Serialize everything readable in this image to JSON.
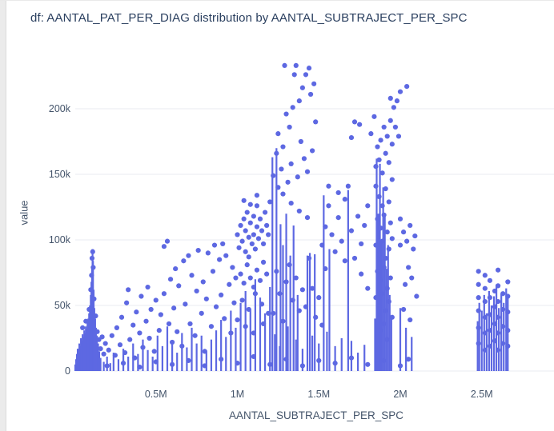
{
  "colors": {
    "marker": "#5D68E2",
    "grid": "#E9EBF1",
    "title_text": "#2A3F5F",
    "tick_text": "#44546A",
    "gutter": "#EBEBEB"
  },
  "chart_data": {
    "type": "scatter",
    "title": "df: AANTAL_PAT_PER_DIAG distribution by AANTAL_SUBTRAJECT_PER_SPC",
    "xlabel": "AANTAL_SUBTRAJECT_PER_SPC",
    "ylabel": "value",
    "x_units": "millions",
    "y_units": "thousands",
    "xlim_m": [
      0,
      2.96
    ],
    "ylim_k": [
      0,
      241
    ],
    "grid": true,
    "legend_position": "none",
    "x_ticks": [
      {
        "value_m": 0.5,
        "label": "0.5M"
      },
      {
        "value_m": 1.0,
        "label": "1M"
      },
      {
        "value_m": 1.5,
        "label": "1.5M"
      },
      {
        "value_m": 2.0,
        "label": "2M"
      },
      {
        "value_m": 2.5,
        "label": "2.5M"
      }
    ],
    "y_ticks": [
      {
        "value_k": 0,
        "label": "0"
      },
      {
        "value_k": 50,
        "label": "50k"
      },
      {
        "value_k": 100,
        "label": "100k"
      },
      {
        "value_k": 150,
        "label": "150k"
      },
      {
        "value_k": 200,
        "label": "200k"
      }
    ],
    "segments_xm_yk": [
      [
        0.005,
        5
      ],
      [
        0.01,
        9
      ],
      [
        0.015,
        13
      ],
      [
        0.02,
        17
      ],
      [
        0.025,
        15
      ],
      [
        0.03,
        21
      ],
      [
        0.035,
        19
      ],
      [
        0.04,
        25
      ],
      [
        0.045,
        23
      ],
      [
        0.05,
        28
      ],
      [
        0.055,
        26
      ],
      [
        0.06,
        31
      ],
      [
        0.065,
        29
      ],
      [
        0.07,
        34
      ],
      [
        0.075,
        32
      ],
      [
        0.08,
        37
      ],
      [
        0.085,
        40
      ],
      [
        0.09,
        44
      ],
      [
        0.095,
        50
      ],
      [
        0.1,
        58
      ],
      [
        0.104,
        68
      ],
      [
        0.108,
        80
      ],
      [
        0.111,
        93
      ],
      [
        0.114,
        84
      ],
      [
        0.118,
        62
      ],
      [
        0.122,
        48
      ],
      [
        0.127,
        40
      ],
      [
        0.132,
        33
      ],
      [
        0.138,
        27
      ],
      [
        0.145,
        21
      ],
      [
        0.152,
        15
      ],
      [
        0.16,
        10
      ],
      [
        0.18,
        7
      ],
      [
        0.2,
        11
      ],
      [
        0.22,
        6
      ],
      [
        0.24,
        14
      ],
      [
        0.27,
        9
      ],
      [
        0.3,
        17
      ],
      [
        0.33,
        11
      ],
      [
        0.36,
        21
      ],
      [
        0.39,
        13
      ],
      [
        0.42,
        24
      ],
      [
        0.45,
        16
      ],
      [
        0.48,
        11
      ],
      [
        0.51,
        27
      ],
      [
        0.54,
        19
      ],
      [
        0.57,
        34
      ],
      [
        0.6,
        23
      ],
      [
        0.63,
        14
      ],
      [
        0.66,
        29
      ],
      [
        0.69,
        18
      ],
      [
        0.72,
        33
      ],
      [
        0.75,
        21
      ],
      [
        0.78,
        27
      ],
      [
        0.81,
        15
      ],
      [
        0.84,
        24
      ],
      [
        0.87,
        31
      ],
      [
        0.9,
        39
      ],
      [
        0.93,
        26
      ],
      [
        0.96,
        46
      ],
      [
        0.99,
        33
      ],
      [
        1.02,
        52
      ],
      [
        1.05,
        61
      ],
      [
        1.08,
        47
      ],
      [
        1.11,
        70
      ],
      [
        1.14,
        56
      ],
      [
        1.17,
        44
      ],
      [
        1.2,
        64
      ],
      [
        1.215,
        163
      ],
      [
        1.24,
        170
      ],
      [
        1.265,
        112
      ],
      [
        1.28,
        96
      ],
      [
        1.3,
        120
      ],
      [
        1.325,
        88
      ],
      [
        1.345,
        111
      ],
      [
        1.37,
        58
      ],
      [
        1.43,
        88
      ],
      [
        1.445,
        90
      ],
      [
        1.475,
        89
      ],
      [
        1.53,
        134
      ],
      [
        1.565,
        93
      ],
      [
        1.68,
        138
      ],
      [
        1.23,
        28
      ],
      [
        1.26,
        19
      ],
      [
        1.31,
        34
      ],
      [
        1.36,
        24
      ],
      [
        1.4,
        17
      ],
      [
        1.46,
        27
      ],
      [
        1.5,
        21
      ],
      [
        1.55,
        30
      ],
      [
        1.6,
        19
      ],
      [
        1.64,
        25
      ],
      [
        1.7,
        23
      ],
      [
        1.74,
        14
      ],
      [
        1.78,
        20
      ],
      [
        1.845,
        40
      ],
      [
        1.855,
        162
      ],
      [
        1.865,
        120
      ],
      [
        1.875,
        158
      ],
      [
        1.885,
        98
      ],
      [
        1.895,
        140
      ],
      [
        1.905,
        118
      ],
      [
        1.915,
        78
      ],
      [
        1.925,
        96
      ],
      [
        1.935,
        58
      ],
      [
        1.945,
        42
      ],
      [
        2.0,
        48
      ],
      [
        2.035,
        33
      ],
      [
        2.07,
        26
      ],
      [
        2.475,
        38
      ],
      [
        2.485,
        52
      ],
      [
        2.5,
        46
      ],
      [
        2.515,
        58
      ],
      [
        2.53,
        44
      ],
      [
        2.545,
        61
      ],
      [
        2.56,
        50
      ],
      [
        2.575,
        57
      ],
      [
        2.59,
        66
      ],
      [
        2.605,
        48
      ],
      [
        2.62,
        59
      ],
      [
        2.635,
        52
      ],
      [
        2.65,
        63
      ],
      [
        2.66,
        57
      ]
    ],
    "points_xm_yk": [
      [
        0.05,
        33
      ],
      [
        0.07,
        38
      ],
      [
        0.09,
        47
      ],
      [
        0.1,
        62
      ],
      [
        0.105,
        73
      ],
      [
        0.108,
        86
      ],
      [
        0.112,
        91
      ],
      [
        0.115,
        79
      ],
      [
        0.12,
        55
      ],
      [
        0.13,
        42
      ],
      [
        0.14,
        30
      ],
      [
        0.15,
        24
      ],
      [
        0.16,
        17
      ],
      [
        0.17,
        26
      ],
      [
        0.18,
        13
      ],
      [
        0.19,
        21
      ],
      [
        0.21,
        16
      ],
      [
        0.23,
        27
      ],
      [
        0.25,
        12
      ],
      [
        0.26,
        33
      ],
      [
        0.28,
        20
      ],
      [
        0.29,
        41
      ],
      [
        0.31,
        14
      ],
      [
        0.32,
        52
      ],
      [
        0.33,
        62
      ],
      [
        0.34,
        24
      ],
      [
        0.36,
        35
      ],
      [
        0.37,
        10
      ],
      [
        0.38,
        45
      ],
      [
        0.4,
        29
      ],
      [
        0.41,
        57
      ],
      [
        0.42,
        18
      ],
      [
        0.44,
        38
      ],
      [
        0.45,
        64
      ],
      [
        0.46,
        25
      ],
      [
        0.47,
        47
      ],
      [
        0.49,
        15
      ],
      [
        0.5,
        54
      ],
      [
        0.52,
        31
      ],
      [
        0.53,
        43
      ],
      [
        0.55,
        95
      ],
      [
        0.55,
        59
      ],
      [
        0.57,
        99
      ],
      [
        0.58,
        36
      ],
      [
        0.59,
        70
      ],
      [
        0.6,
        22
      ],
      [
        0.61,
        48
      ],
      [
        0.62,
        78
      ],
      [
        0.63,
        30
      ],
      [
        0.64,
        65
      ],
      [
        0.66,
        19
      ],
      [
        0.67,
        84
      ],
      [
        0.68,
        51
      ],
      [
        0.7,
        88
      ],
      [
        0.71,
        36
      ],
      [
        0.72,
        73
      ],
      [
        0.74,
        27
      ],
      [
        0.75,
        61
      ],
      [
        0.76,
        92
      ],
      [
        0.78,
        44
      ],
      [
        0.79,
        68
      ],
      [
        0.8,
        15
      ],
      [
        0.81,
        55
      ],
      [
        0.82,
        90
      ],
      [
        0.84,
        34
      ],
      [
        0.85,
        76
      ],
      [
        0.86,
        96
      ],
      [
        0.87,
        49
      ],
      [
        0.89,
        85
      ],
      [
        0.9,
        58
      ],
      [
        0.91,
        97
      ],
      [
        0.92,
        40
      ],
      [
        0.93,
        88
      ],
      [
        0.95,
        66
      ],
      [
        0.96,
        29
      ],
      [
        0.97,
        79
      ],
      [
        0.98,
        52
      ],
      [
        0.99,
        71
      ],
      [
        1.0,
        104
      ],
      [
        1.01,
        94
      ],
      [
        1.02,
        111
      ],
      [
        1.03,
        99
      ],
      [
        1.04,
        116
      ],
      [
        1.05,
        107
      ],
      [
        1.05,
        91
      ],
      [
        1.06,
        121
      ],
      [
        1.07,
        102
      ],
      [
        1.07,
        87
      ],
      [
        1.08,
        113
      ],
      [
        1.09,
        97
      ],
      [
        1.1,
        118
      ],
      [
        1.1,
        104
      ],
      [
        1.11,
        93
      ],
      [
        1.12,
        110
      ],
      [
        1.12,
        126
      ],
      [
        1.13,
        101
      ],
      [
        1.14,
        116
      ],
      [
        1.15,
        107
      ],
      [
        1.16,
        97
      ],
      [
        1.17,
        121
      ],
      [
        1.18,
        111
      ],
      [
        1.19,
        104
      ],
      [
        1.2,
        129
      ],
      [
        1.04,
        130
      ],
      [
        1.08,
        127
      ],
      [
        1.12,
        134
      ],
      [
        1.02,
        74
      ],
      [
        1.04,
        67
      ],
      [
        1.06,
        81
      ],
      [
        1.08,
        71
      ],
      [
        1.1,
        64
      ],
      [
        1.12,
        77
      ],
      [
        1.14,
        69
      ],
      [
        1.16,
        83
      ],
      [
        1.18,
        74
      ],
      [
        1.03,
        54
      ],
      [
        1.07,
        47
      ],
      [
        1.11,
        59
      ],
      [
        1.15,
        51
      ],
      [
        1.19,
        44
      ],
      [
        1.0,
        39
      ],
      [
        1.05,
        34
      ],
      [
        1.1,
        29
      ],
      [
        1.16,
        36
      ],
      [
        1.22,
        149
      ],
      [
        1.24,
        166
      ],
      [
        1.25,
        181
      ],
      [
        1.27,
        154
      ],
      [
        1.28,
        171
      ],
      [
        1.29,
        233
      ],
      [
        1.3,
        196
      ],
      [
        1.31,
        144
      ],
      [
        1.32,
        186
      ],
      [
        1.33,
        158
      ],
      [
        1.34,
        201
      ],
      [
        1.35,
        226
      ],
      [
        1.36,
        233
      ],
      [
        1.37,
        148
      ],
      [
        1.38,
        206
      ],
      [
        1.39,
        175
      ],
      [
        1.4,
        216
      ],
      [
        1.41,
        162
      ],
      [
        1.42,
        226
      ],
      [
        1.43,
        152
      ],
      [
        1.44,
        231
      ],
      [
        1.45,
        211
      ],
      [
        1.46,
        168
      ],
      [
        1.47,
        219
      ],
      [
        1.48,
        190
      ],
      [
        1.25,
        140
      ],
      [
        1.28,
        135
      ],
      [
        1.33,
        128
      ],
      [
        1.38,
        122
      ],
      [
        1.43,
        117
      ],
      [
        1.22,
        44
      ],
      [
        1.24,
        76
      ],
      [
        1.26,
        59
      ],
      [
        1.28,
        38
      ],
      [
        1.3,
        68
      ],
      [
        1.32,
        81
      ],
      [
        1.34,
        54
      ],
      [
        1.36,
        71
      ],
      [
        1.38,
        46
      ],
      [
        1.4,
        62
      ],
      [
        1.42,
        49
      ],
      [
        1.44,
        86
      ],
      [
        1.46,
        63
      ],
      [
        1.48,
        41
      ],
      [
        1.5,
        56
      ],
      [
        1.52,
        35
      ],
      [
        1.54,
        78
      ],
      [
        1.52,
        96
      ],
      [
        1.54,
        110
      ],
      [
        1.56,
        126
      ],
      [
        1.58,
        104
      ],
      [
        1.6,
        91
      ],
      [
        1.62,
        117
      ],
      [
        1.64,
        99
      ],
      [
        1.66,
        131
      ],
      [
        1.68,
        141
      ],
      [
        1.7,
        107
      ],
      [
        1.7,
        178
      ],
      [
        1.72,
        190
      ],
      [
        1.75,
        188
      ],
      [
        1.72,
        86
      ],
      [
        1.74,
        118
      ],
      [
        1.76,
        97
      ],
      [
        1.78,
        111
      ],
      [
        1.8,
        126
      ],
      [
        1.56,
        141
      ],
      [
        1.62,
        136
      ],
      [
        1.66,
        84
      ],
      [
        1.76,
        74
      ],
      [
        1.8,
        63
      ],
      [
        1.82,
        181
      ],
      [
        1.84,
        194
      ],
      [
        1.85,
        156
      ],
      [
        1.86,
        171
      ],
      [
        1.87,
        161
      ],
      [
        1.88,
        176
      ],
      [
        1.89,
        151
      ],
      [
        1.9,
        186
      ],
      [
        1.91,
        166
      ],
      [
        1.92,
        179
      ],
      [
        1.93,
        159
      ],
      [
        1.94,
        191
      ],
      [
        1.94,
        208
      ],
      [
        1.95,
        173
      ],
      [
        1.85,
        141
      ],
      [
        1.87,
        133
      ],
      [
        1.89,
        126
      ],
      [
        1.91,
        139
      ],
      [
        1.93,
        129
      ],
      [
        1.95,
        146
      ],
      [
        1.86,
        116
      ],
      [
        1.88,
        109
      ],
      [
        1.9,
        119
      ],
      [
        1.92,
        106
      ],
      [
        1.94,
        113
      ],
      [
        1.85,
        96
      ],
      [
        1.87,
        89
      ],
      [
        1.89,
        99
      ],
      [
        1.91,
        86
      ],
      [
        1.93,
        93
      ],
      [
        1.95,
        101
      ],
      [
        1.86,
        76
      ],
      [
        1.88,
        69
      ],
      [
        1.9,
        79
      ],
      [
        1.92,
        63
      ],
      [
        1.94,
        71
      ],
      [
        1.85,
        56
      ],
      [
        1.87,
        49
      ],
      [
        1.89,
        59
      ],
      [
        1.91,
        46
      ],
      [
        1.93,
        53
      ],
      [
        1.95,
        41
      ],
      [
        1.9,
        36
      ],
      [
        1.88,
        31
      ],
      [
        1.92,
        24
      ],
      [
        1.96,
        201
      ],
      [
        1.98,
        206
      ],
      [
        2.0,
        213
      ],
      [
        2.04,
        217
      ],
      [
        1.97,
        186
      ],
      [
        1.99,
        179
      ],
      [
        2.0,
        96
      ],
      [
        2.02,
        106
      ],
      [
        2.04,
        99
      ],
      [
        2.06,
        111
      ],
      [
        2.08,
        93
      ],
      [
        2.05,
        79
      ],
      [
        2.03,
        66
      ],
      [
        2.07,
        71
      ],
      [
        2.0,
        116
      ],
      [
        2.09,
        103
      ],
      [
        2.02,
        47
      ],
      [
        2.06,
        39
      ],
      [
        2.1,
        57
      ],
      [
        2.48,
        21
      ],
      [
        2.48,
        33
      ],
      [
        2.48,
        46
      ],
      [
        2.48,
        56
      ],
      [
        2.48,
        66
      ],
      [
        2.48,
        76
      ],
      [
        2.52,
        16
      ],
      [
        2.52,
        29
      ],
      [
        2.52,
        41
      ],
      [
        2.52,
        53
      ],
      [
        2.52,
        63
      ],
      [
        2.52,
        73
      ],
      [
        2.55,
        19
      ],
      [
        2.55,
        31
      ],
      [
        2.55,
        43
      ],
      [
        2.55,
        56
      ],
      [
        2.55,
        69
      ],
      [
        2.58,
        23
      ],
      [
        2.58,
        36
      ],
      [
        2.58,
        49
      ],
      [
        2.58,
        61
      ],
      [
        2.6,
        16
      ],
      [
        2.6,
        29
      ],
      [
        2.6,
        41
      ],
      [
        2.6,
        53
      ],
      [
        2.6,
        65
      ],
      [
        2.6,
        77
      ],
      [
        2.63,
        21
      ],
      [
        2.63,
        34
      ],
      [
        2.63,
        47
      ],
      [
        2.63,
        59
      ],
      [
        2.66,
        19
      ],
      [
        2.66,
        31
      ],
      [
        2.66,
        45
      ],
      [
        2.66,
        57
      ],
      [
        2.66,
        68
      ],
      [
        0.2,
        4
      ],
      [
        0.3,
        6
      ],
      [
        0.4,
        3
      ],
      [
        0.5,
        7
      ],
      [
        0.6,
        5
      ],
      [
        0.7,
        8
      ],
      [
        0.8,
        4
      ],
      [
        0.9,
        9
      ],
      [
        1.0,
        6
      ],
      [
        1.1,
        11
      ],
      [
        1.2,
        5
      ],
      [
        1.3,
        9
      ],
      [
        1.4,
        4
      ],
      [
        1.5,
        8
      ],
      [
        1.6,
        6
      ],
      [
        1.7,
        10
      ],
      [
        1.8,
        5
      ],
      [
        1.9,
        8
      ],
      [
        2.0,
        4
      ],
      [
        2.05,
        9
      ]
    ]
  }
}
